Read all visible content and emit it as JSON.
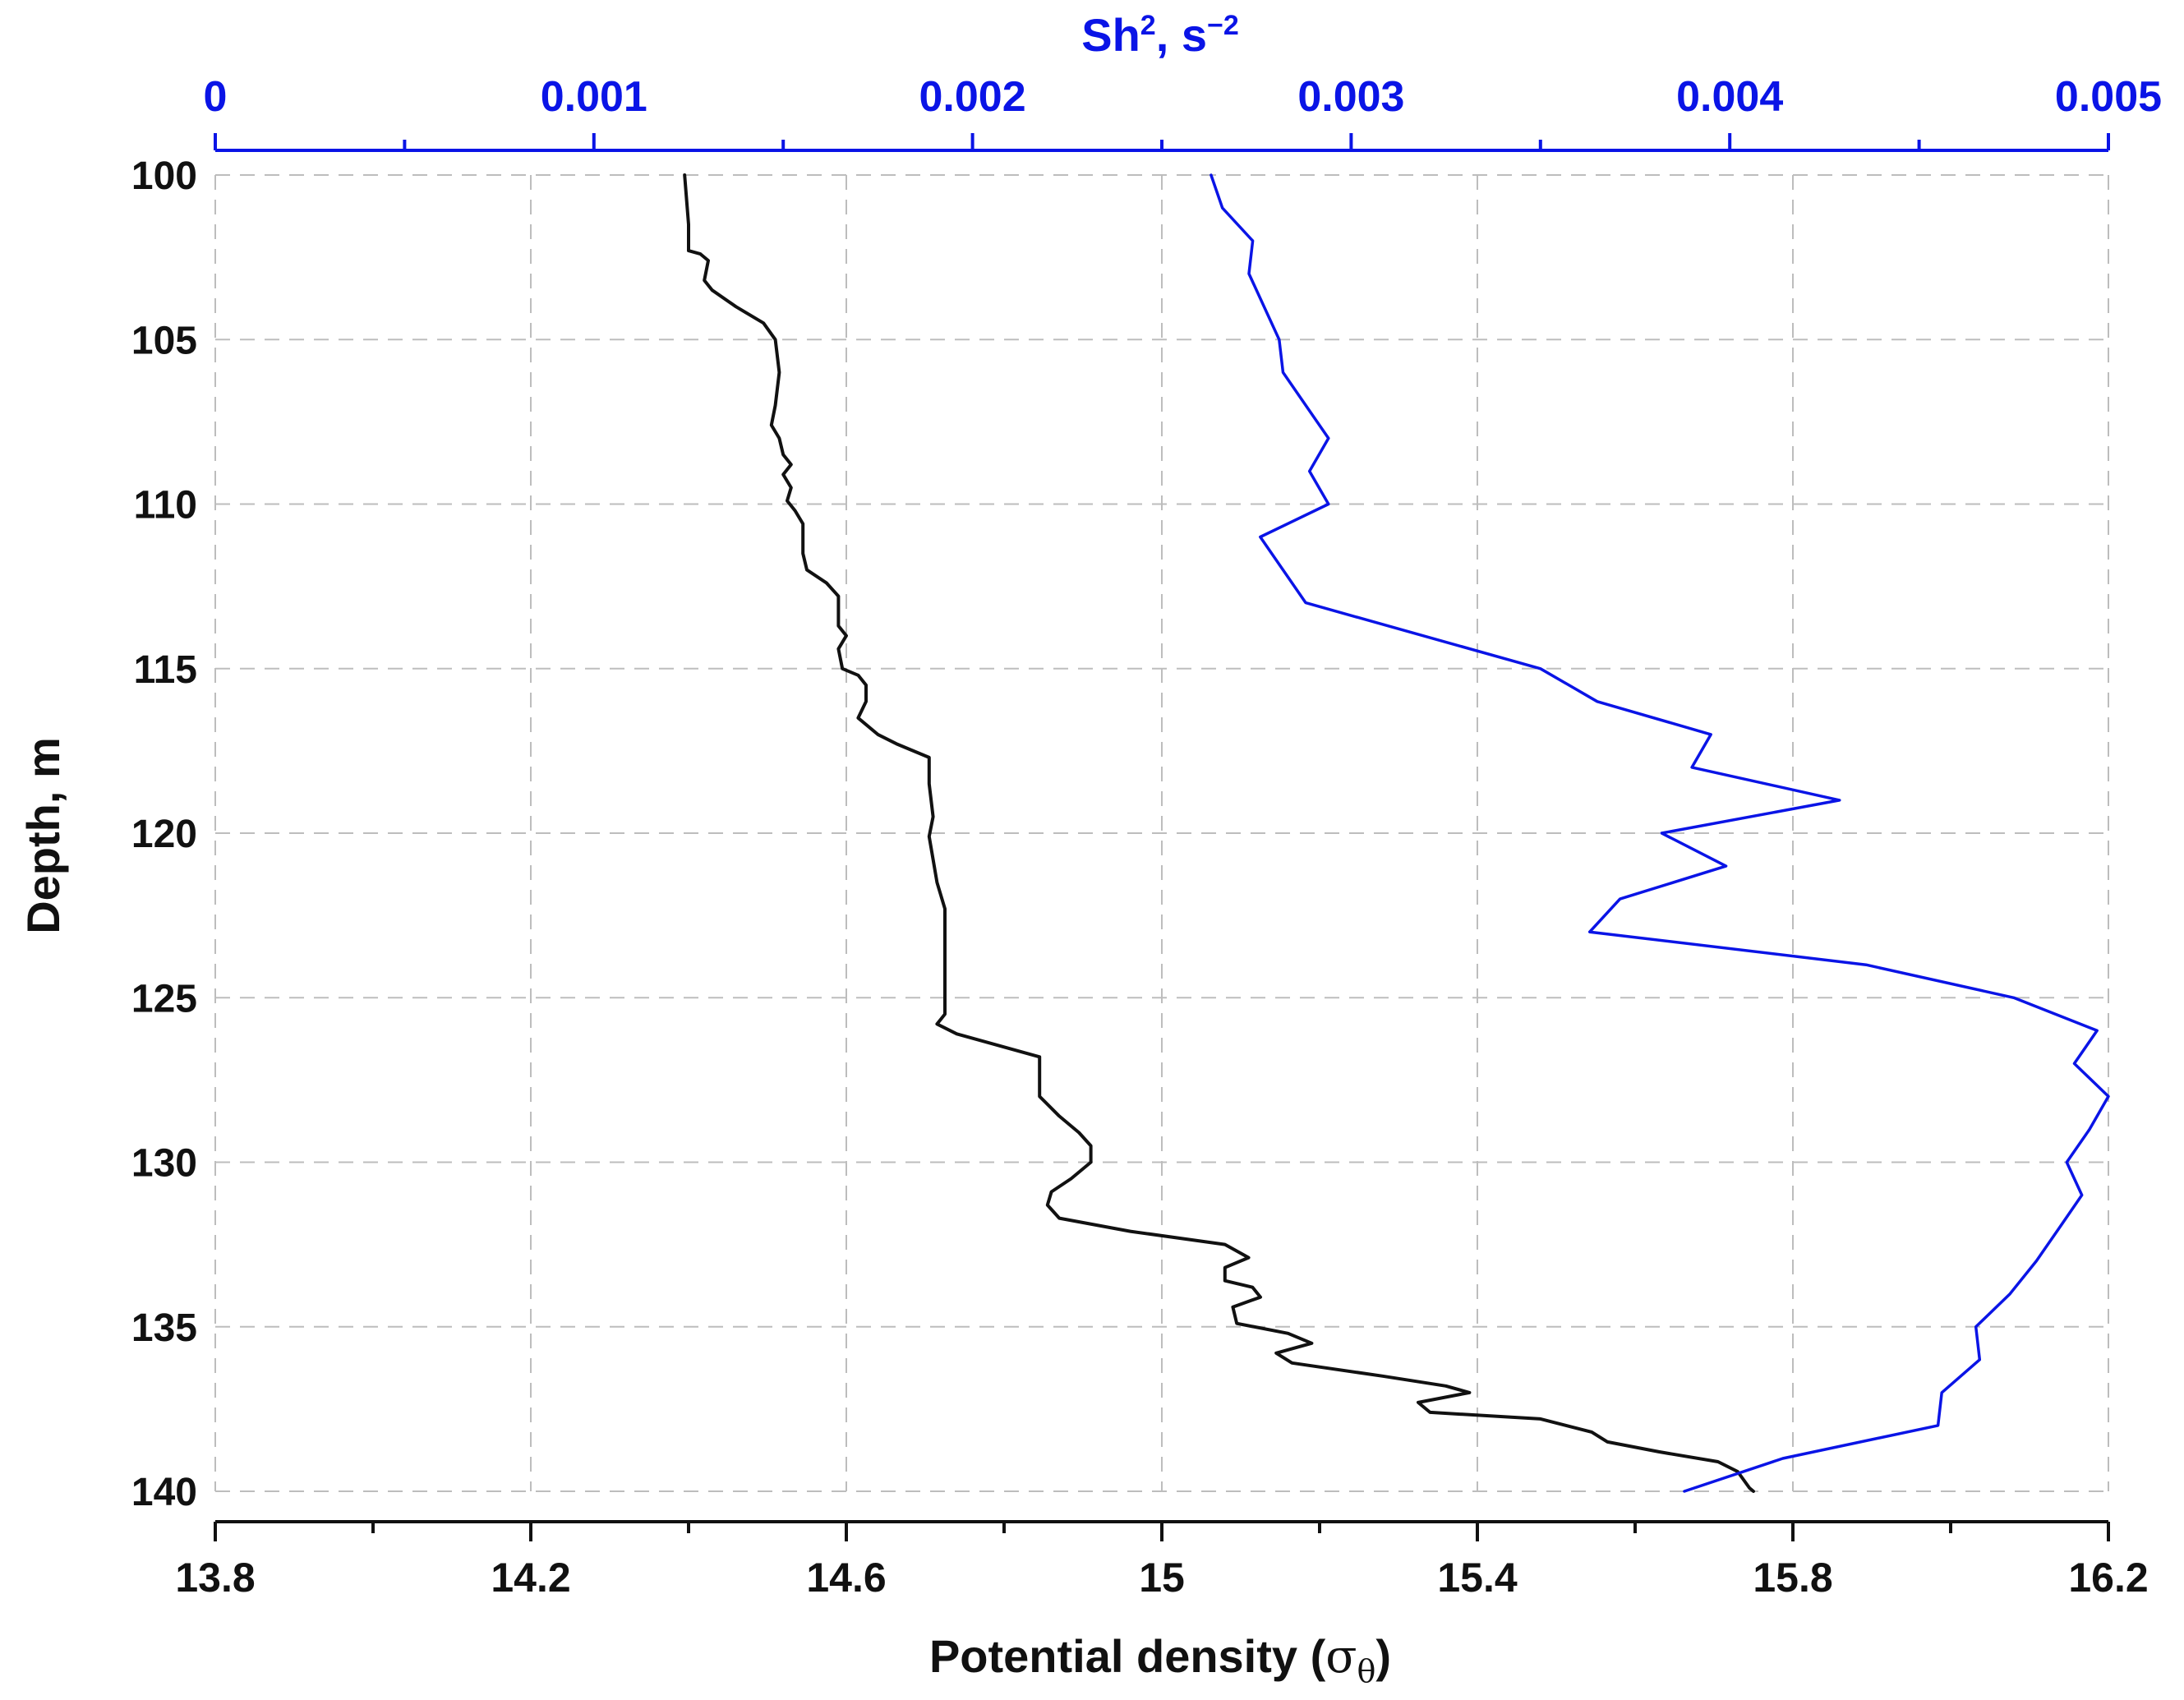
{
  "chart_data": {
    "type": "line",
    "xlabel_bottom_prefix": "Potential density (",
    "xlabel_bottom_symbol": "σ",
    "xlabel_bottom_subscript": "θ",
    "xlabel_bottom_suffix": ")",
    "xlabel_top_base": "Sh",
    "xlabel_top_sup1": "2",
    "xlabel_top_mid": ", s",
    "xlabel_top_sup2": "−2",
    "ylabel": "Depth, m",
    "ylim": [
      100,
      140
    ],
    "y_inverted": true,
    "y_ticks": [
      "100",
      "105",
      "110",
      "115",
      "120",
      "125",
      "130",
      "135",
      "140"
    ],
    "xlim_bottom": [
      13.8,
      16.2
    ],
    "x_ticks_bottom": [
      "13.8",
      "14.2",
      "14.6",
      "15",
      "15.4",
      "15.8",
      "16.2"
    ],
    "xlim_top": [
      0,
      0.005
    ],
    "x_ticks_top": [
      "0",
      "0.001",
      "0.002",
      "0.003",
      "0.004",
      "0.005"
    ],
    "grid": true,
    "colors": {
      "density": "#111111",
      "shear": "#0a14e6",
      "grid": "#bdbdbd"
    },
    "series": [
      {
        "axis": "bottom",
        "color": "#111111",
        "points": [
          [
            14.395,
            100.0
          ],
          [
            14.4,
            101.5
          ],
          [
            14.4,
            102.3
          ],
          [
            14.415,
            102.4
          ],
          [
            14.425,
            102.6
          ],
          [
            14.42,
            103.2
          ],
          [
            14.43,
            103.5
          ],
          [
            14.46,
            104.0
          ],
          [
            14.495,
            104.5
          ],
          [
            14.51,
            105.0
          ],
          [
            14.515,
            106.0
          ],
          [
            14.51,
            107.0
          ],
          [
            14.505,
            107.6
          ],
          [
            14.515,
            108.0
          ],
          [
            14.52,
            108.5
          ],
          [
            14.53,
            108.8
          ],
          [
            14.52,
            109.1
          ],
          [
            14.53,
            109.5
          ],
          [
            14.525,
            109.9
          ],
          [
            14.535,
            110.2
          ],
          [
            14.545,
            110.6
          ],
          [
            14.545,
            111.5
          ],
          [
            14.55,
            112.0
          ],
          [
            14.575,
            112.4
          ],
          [
            14.59,
            112.8
          ],
          [
            14.59,
            113.7
          ],
          [
            14.6,
            114.0
          ],
          [
            14.59,
            114.4
          ],
          [
            14.595,
            115.0
          ],
          [
            14.615,
            115.2
          ],
          [
            14.625,
            115.5
          ],
          [
            14.625,
            116.0
          ],
          [
            14.615,
            116.5
          ],
          [
            14.64,
            117.0
          ],
          [
            14.665,
            117.3
          ],
          [
            14.705,
            117.7
          ],
          [
            14.705,
            118.5
          ],
          [
            14.71,
            119.5
          ],
          [
            14.705,
            120.1
          ],
          [
            14.71,
            120.8
          ],
          [
            14.715,
            121.5
          ],
          [
            14.725,
            122.3
          ],
          [
            14.725,
            123.5
          ],
          [
            14.725,
            124.5
          ],
          [
            14.725,
            125.5
          ],
          [
            14.715,
            125.8
          ],
          [
            14.74,
            126.1
          ],
          [
            14.8,
            126.5
          ],
          [
            14.845,
            126.8
          ],
          [
            14.845,
            128.0
          ],
          [
            14.87,
            128.6
          ],
          [
            14.895,
            129.1
          ],
          [
            14.91,
            129.5
          ],
          [
            14.91,
            130.0
          ],
          [
            14.885,
            130.5
          ],
          [
            14.86,
            130.9
          ],
          [
            14.855,
            131.3
          ],
          [
            14.87,
            131.7
          ],
          [
            14.96,
            132.1
          ],
          [
            15.08,
            132.5
          ],
          [
            15.11,
            132.9
          ],
          [
            15.08,
            133.2
          ],
          [
            15.08,
            133.6
          ],
          [
            15.115,
            133.8
          ],
          [
            15.125,
            134.1
          ],
          [
            15.09,
            134.4
          ],
          [
            15.095,
            134.9
          ],
          [
            15.16,
            135.2
          ],
          [
            15.19,
            135.5
          ],
          [
            15.145,
            135.8
          ],
          [
            15.165,
            136.1
          ],
          [
            15.28,
            136.5
          ],
          [
            15.36,
            136.8
          ],
          [
            15.39,
            137.0
          ],
          [
            15.325,
            137.3
          ],
          [
            15.34,
            137.6
          ],
          [
            15.48,
            137.8
          ],
          [
            15.545,
            138.2
          ],
          [
            15.565,
            138.5
          ],
          [
            15.63,
            138.8
          ],
          [
            15.705,
            139.1
          ],
          [
            15.73,
            139.4
          ],
          [
            15.745,
            139.9
          ],
          [
            15.75,
            140.0
          ]
        ]
      },
      {
        "axis": "top",
        "color": "#0a14e6",
        "points": [
          [
            0.00263,
            100.0
          ],
          [
            0.00266,
            101.0
          ],
          [
            0.00274,
            102.0
          ],
          [
            0.00273,
            103.0
          ],
          [
            0.00281,
            105.0
          ],
          [
            0.00282,
            106.0
          ],
          [
            0.00294,
            108.0
          ],
          [
            0.00289,
            109.0
          ],
          [
            0.00294,
            110.0
          ],
          [
            0.00276,
            111.0
          ],
          [
            0.00282,
            112.0
          ],
          [
            0.00288,
            113.0
          ],
          [
            0.0035,
            115.0
          ],
          [
            0.00365,
            116.0
          ],
          [
            0.00395,
            117.0
          ],
          [
            0.0039,
            118.0
          ],
          [
            0.00429,
            119.0
          ],
          [
            0.00382,
            120.0
          ],
          [
            0.00399,
            121.0
          ],
          [
            0.00371,
            122.0
          ],
          [
            0.00363,
            123.0
          ],
          [
            0.00436,
            124.0
          ],
          [
            0.00475,
            125.0
          ],
          [
            0.00497,
            126.0
          ],
          [
            0.00491,
            127.0
          ],
          [
            0.005,
            128.0
          ],
          [
            0.00495,
            129.0
          ],
          [
            0.00489,
            130.0
          ],
          [
            0.00493,
            131.0
          ],
          [
            0.00487,
            132.0
          ],
          [
            0.00481,
            133.0
          ],
          [
            0.00474,
            134.0
          ],
          [
            0.00465,
            135.0
          ],
          [
            0.00466,
            136.0
          ],
          [
            0.00456,
            137.0
          ],
          [
            0.00455,
            138.0
          ],
          [
            0.00414,
            139.0
          ],
          [
            0.00388,
            140.0
          ]
        ]
      }
    ]
  }
}
